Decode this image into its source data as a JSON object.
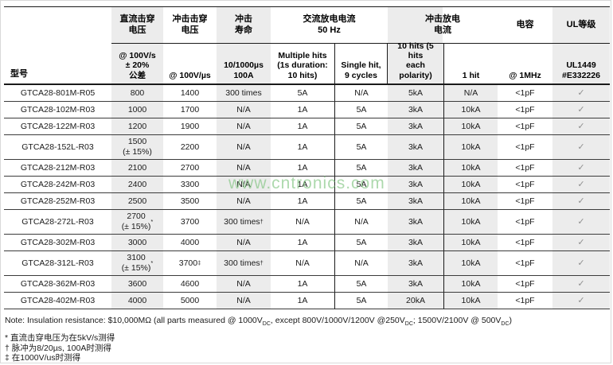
{
  "watermark": "www.cntronics.com",
  "table": {
    "model_header": "型号",
    "group_headers": [
      "直流击穿\n电压",
      "冲击击穿\n电压",
      "冲击\n寿命",
      "交流放电电流\n50 Hz",
      "冲击放电\n电流",
      "电容",
      "UL等级"
    ],
    "sub_headers": [
      "@ 100V/s\n± 20%\n公差",
      "@ 100V/µs",
      "10/1000µs\n100A",
      "Multiple hits\n(1s duration:\n10 hits)",
      "Single hit,\n9 cycles",
      "10 hits (5 hits\neach polarity)",
      "1 hit",
      "@ 1MHz",
      "UL1449\n#E332226"
    ],
    "rows": [
      {
        "model": "GTCA28-801M-R05",
        "cells": [
          "800",
          "1400",
          "300 times",
          "5A",
          "N/A",
          "5kA",
          "N/A",
          "<1pF",
          "✓"
        ]
      },
      {
        "model": "GTCA28-102M-R03",
        "cells": [
          "1000",
          "1700",
          "N/A",
          "1A",
          "5A",
          "3kA",
          "10kA",
          "<1pF",
          "✓"
        ]
      },
      {
        "model": "GTCA28-122M-R03",
        "cells": [
          "1200",
          "1900",
          "N/A",
          "1A",
          "5A",
          "3kA",
          "10kA",
          "<1pF",
          "✓"
        ]
      },
      {
        "model": "GTCA28-152L-R03",
        "cells": [
          "1500\n(± 15%)",
          "2200",
          "N/A",
          "1A",
          "5A",
          "3kA",
          "10kA",
          "<1pF",
          "✓"
        ]
      },
      {
        "model": "GTCA28-212M-R03",
        "cells": [
          "2100",
          "2700",
          "N/A",
          "1A",
          "5A",
          "3kA",
          "10kA",
          "<1pF",
          "✓"
        ]
      },
      {
        "model": "GTCA28-242M-R03",
        "cells": [
          "2400",
          "3300",
          "N/A",
          "1A",
          "5A",
          "3kA",
          "10kA",
          "<1pF",
          "✓"
        ]
      },
      {
        "model": "GTCA28-252M-R03",
        "cells": [
          "2500",
          "3500",
          "N/A",
          "1A",
          "5A",
          "3kA",
          "10kA",
          "<1pF",
          "✓"
        ]
      },
      {
        "model": "GTCA28-272L-R03",
        "cells": [
          "2700\n(± 15%)^*",
          "3700",
          "300 times^†",
          "N/A",
          "N/A",
          "3kA",
          "10kA",
          "<1pF",
          "✓"
        ]
      },
      {
        "model": "GTCA28-302M-R03",
        "cells": [
          "3000",
          "4000",
          "N/A",
          "1A",
          "5A",
          "3kA",
          "10kA",
          "<1pF",
          "✓"
        ]
      },
      {
        "model": "GTCA28-312L-R03",
        "cells": [
          "3100\n(± 15%)^*",
          "3700^‡",
          "300 times^†",
          "N/A",
          "N/A",
          "3kA",
          "10kA",
          "<1pF",
          "✓"
        ]
      },
      {
        "model": "GTCA28-362M-R03",
        "cells": [
          "3600",
          "4600",
          "N/A",
          "1A",
          "5A",
          "3kA",
          "10kA",
          "<1pF",
          "✓"
        ]
      },
      {
        "model": "GTCA28-402M-R03",
        "cells": [
          "4000",
          "5000",
          "N/A",
          "1A",
          "5A",
          "20kA",
          "10kA",
          "<1pF",
          "✓"
        ]
      }
    ]
  },
  "note": "Note: Insulation resistance: $10,000MΩ (all parts measured @ 1000V~DC~, except 800V/1000V/1200V @250V~DC~; 1500V/2100V @ 500V~DC~)",
  "footnotes": [
    "* 直流击穿电压为在5kV/s测得",
    "† 脉冲为8/20µs, 100A时测得",
    "‡ 在1000V/us时测得"
  ],
  "colors": {
    "shade": "#ececec",
    "rule_dark": "#1a1a1a",
    "rule_row": "#3b3b3b",
    "check": "#8f8f8f",
    "watermark_green": "#7ac17a"
  }
}
